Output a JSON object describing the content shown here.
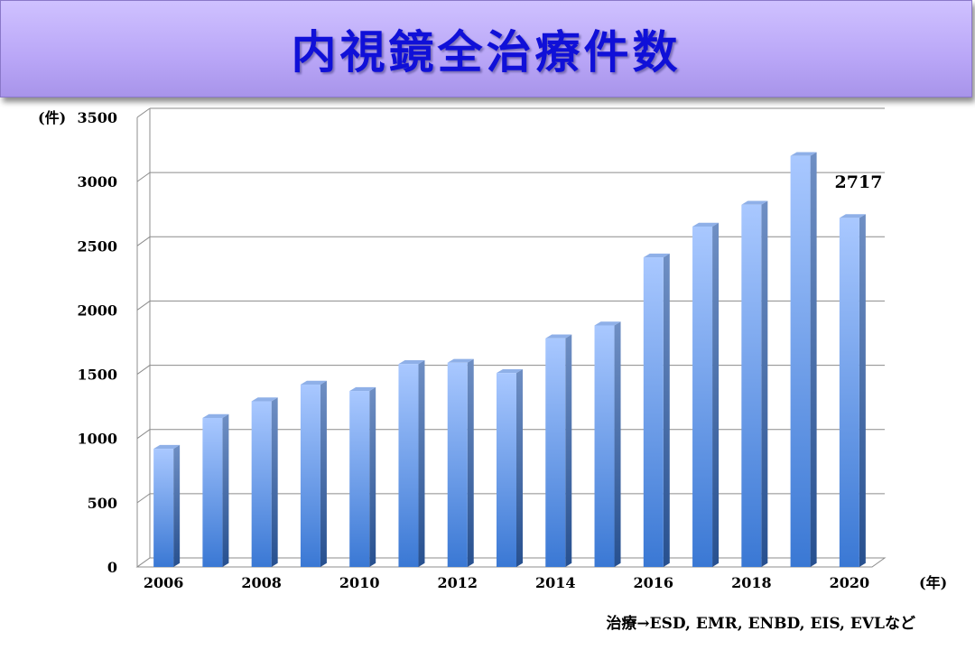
{
  "title": "内視鏡全治療件数",
  "footnote": "治療→ESD, EMR, ENBD, EIS, EVLなど",
  "chart_data": {
    "type": "bar",
    "x": [
      2006,
      2007,
      2008,
      2009,
      2010,
      2011,
      2012,
      2013,
      2014,
      2015,
      2016,
      2017,
      2018,
      2019,
      2020
    ],
    "values": [
      920,
      1160,
      1290,
      1420,
      1370,
      1580,
      1590,
      1510,
      1780,
      1880,
      2410,
      2650,
      2820,
      3200,
      2717
    ],
    "xtick_labels": [
      "2006",
      "2008",
      "2010",
      "2012",
      "2014",
      "2016",
      "2018",
      "2020"
    ],
    "ytick_labels": [
      "0",
      "500",
      "1000",
      "1500",
      "2000",
      "2500",
      "3000",
      "3500"
    ],
    "ylim": [
      0,
      3500
    ],
    "ylabel": "(件)",
    "xlabel": "(年)",
    "annotation": {
      "text": "2717",
      "color": "#e00000"
    },
    "bar_color_top": "#a9c8ff",
    "bar_color_bottom": "#3c7bd6",
    "grid": true
  }
}
